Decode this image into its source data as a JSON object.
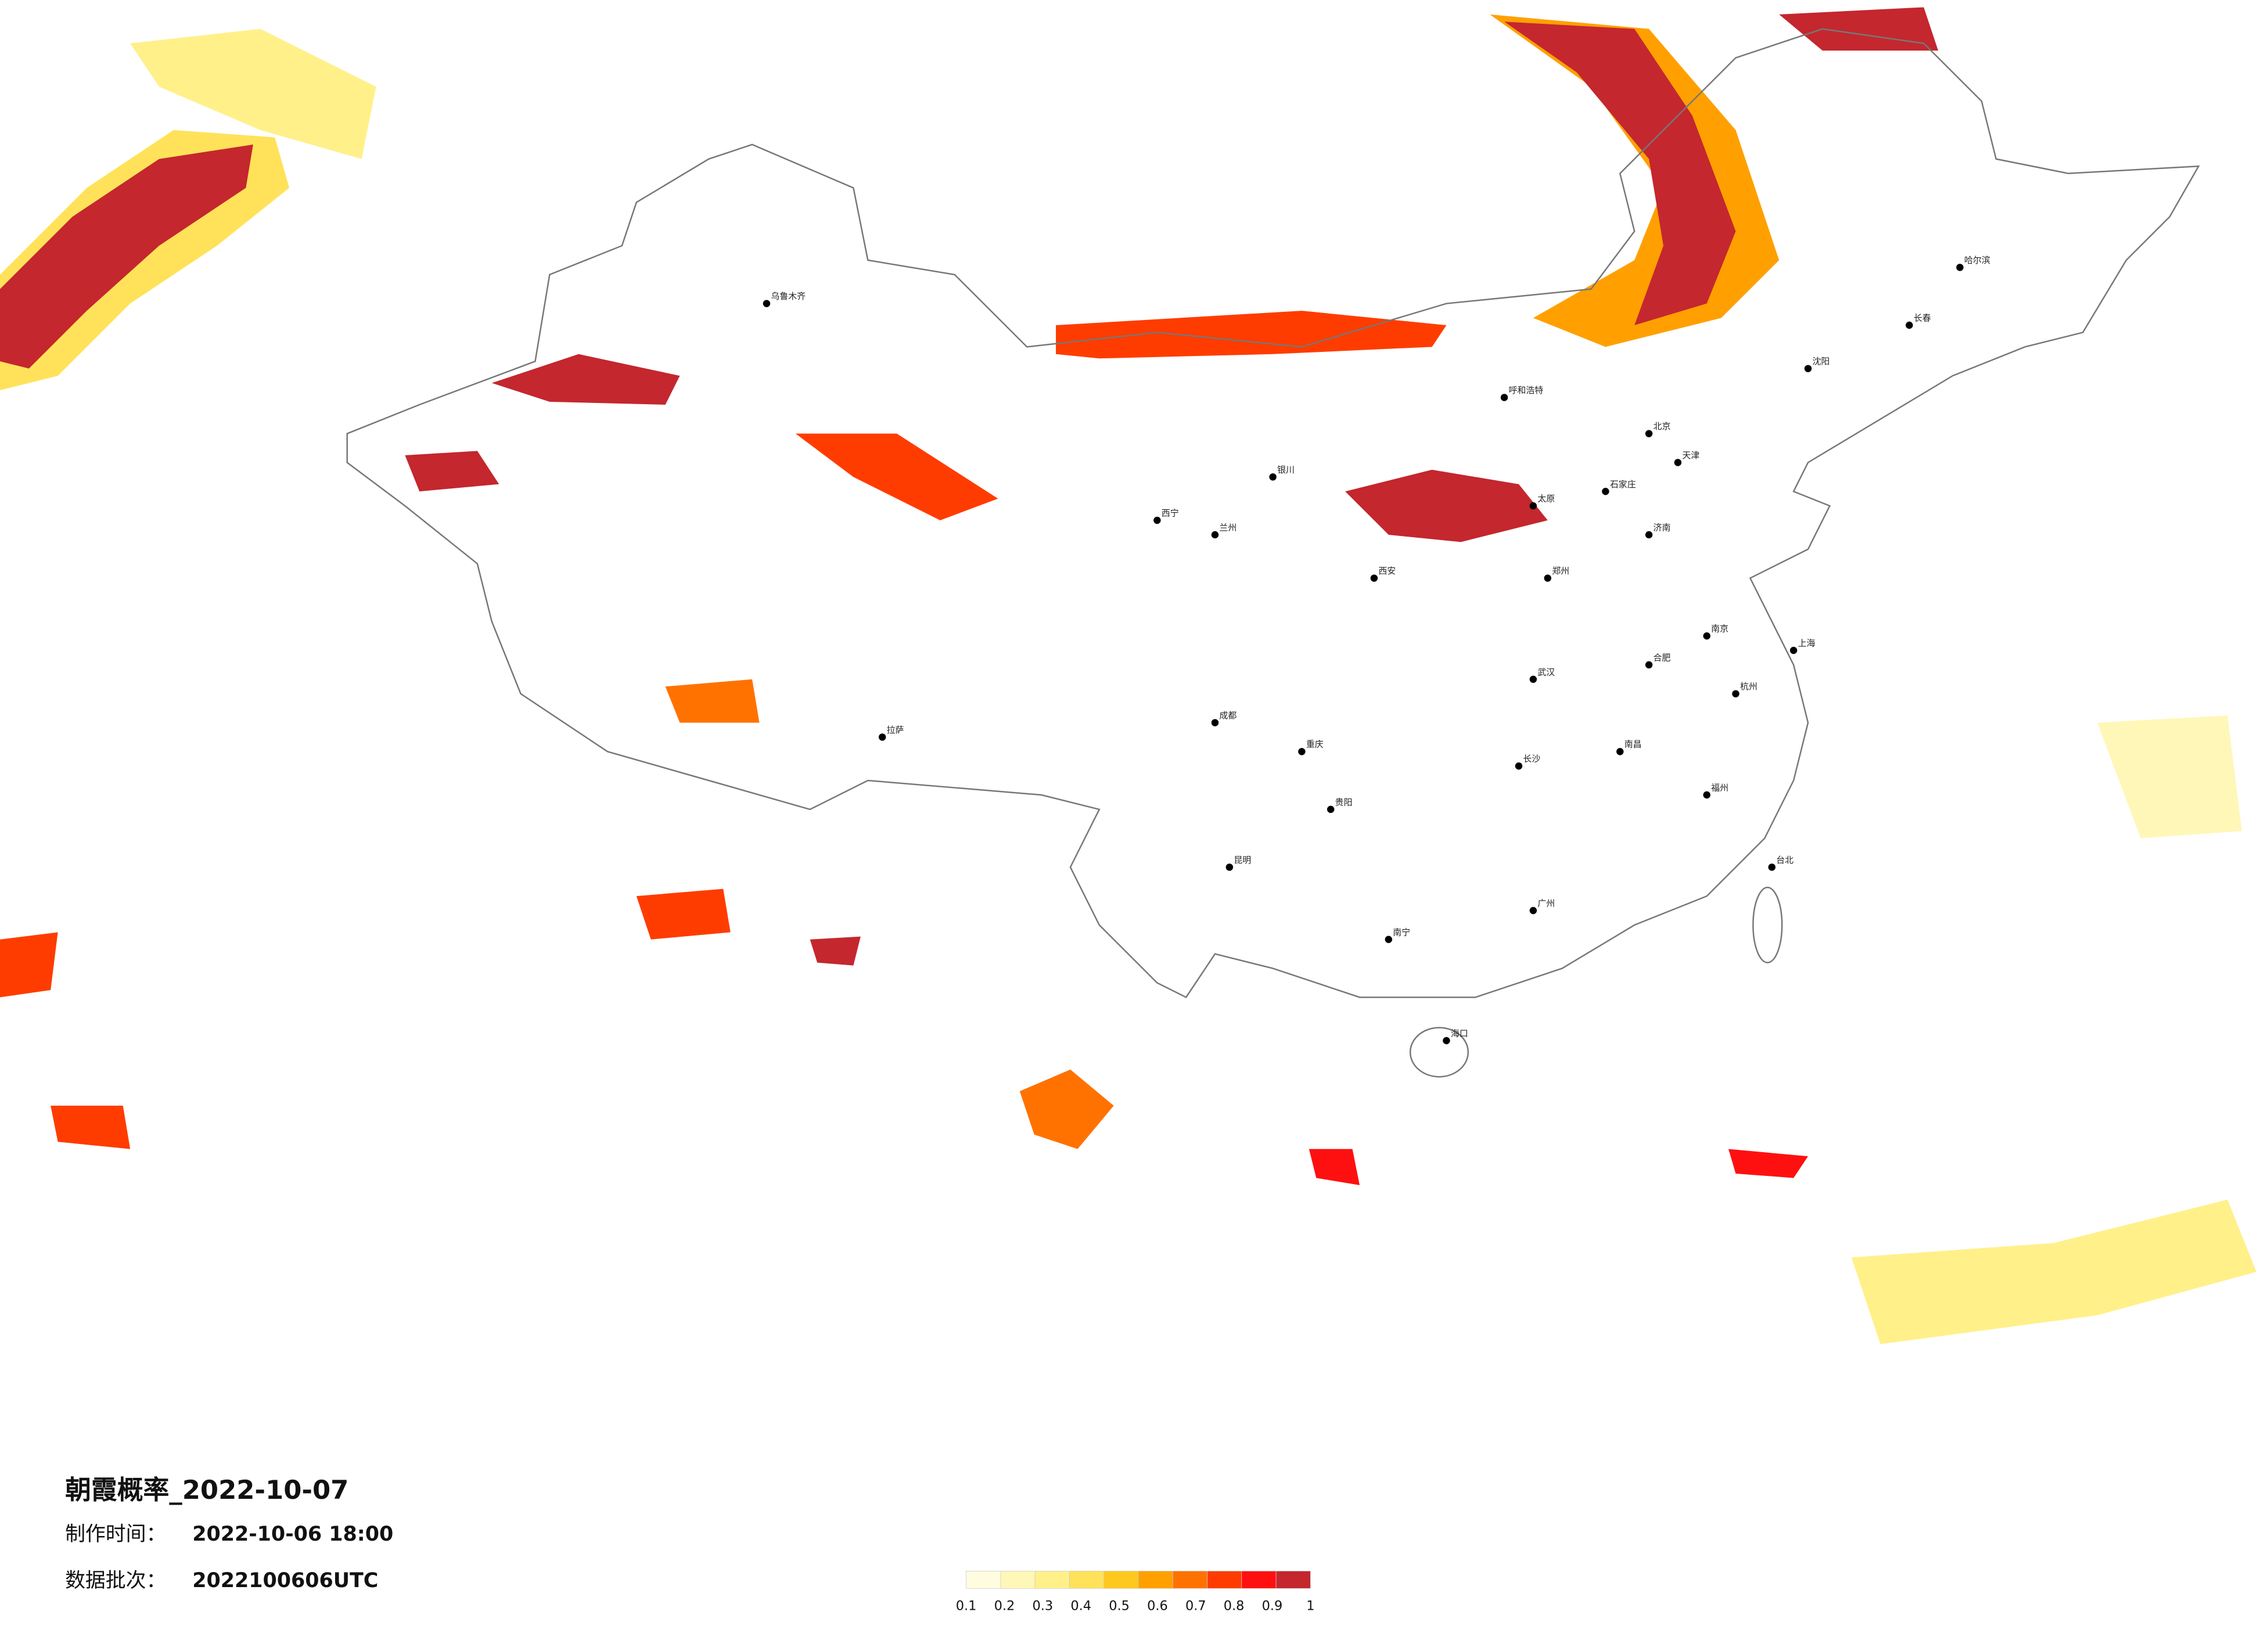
{
  "header": {
    "title": "朝霞概率_2022-10-07",
    "production_time": {
      "label": "制作时间：",
      "value": "2022-10-06 18:00"
    },
    "data_batch": {
      "label": "数据批次：",
      "value": "2022100606UTC"
    }
  },
  "legend": {
    "colors": [
      "#fffce0",
      "#fff7b8",
      "#fff08a",
      "#ffe25a",
      "#ffc81e",
      "#ffa000",
      "#ff7200",
      "#ff3c00",
      "#ff1010",
      "#c4272e"
    ],
    "ticks": [
      0.1,
      0.2,
      0.3,
      0.4,
      0.5,
      0.6,
      0.7,
      0.8,
      0.9,
      1
    ]
  },
  "cities": [
    "北京",
    "天津",
    "石家庄",
    "太原",
    "呼和浩特",
    "沈阳",
    "长春",
    "哈尔滨",
    "上海",
    "南京",
    "杭州",
    "合肥",
    "福州",
    "南昌",
    "济南",
    "郑州",
    "武汉",
    "长沙",
    "广州",
    "南宁",
    "海口",
    "成都",
    "重庆",
    "贵阳",
    "昆明",
    "拉萨",
    "西安",
    "兰州",
    "西宁",
    "银川",
    "乌鲁木齐",
    "台北"
  ]
}
